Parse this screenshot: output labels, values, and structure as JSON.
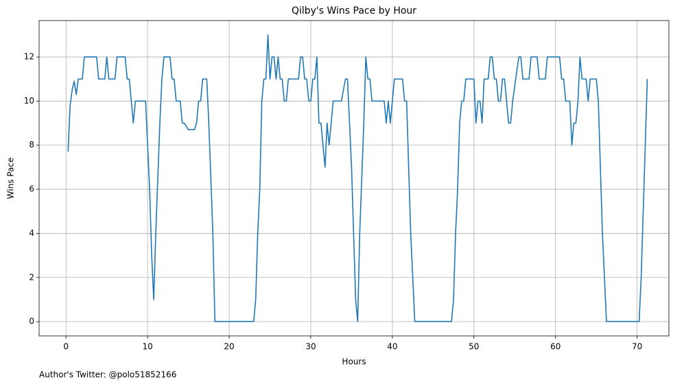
{
  "chart_data": {
    "type": "line",
    "title": "Qilby's Wins Pace by Hour",
    "xlabel": "Hours",
    "ylabel": "Wins Pace",
    "annotation": "Author's Twitter: @polo51852166",
    "color": "#1f77b4",
    "grid": true,
    "x": [
      0.25,
      0.5,
      0.75,
      1.0,
      1.25,
      1.5,
      2.0,
      2.25,
      3.75,
      4.0,
      4.75,
      5.0,
      5.25,
      6.0,
      6.25,
      7.25,
      7.5,
      7.75,
      8.25,
      8.5,
      9.75,
      10.25,
      10.5,
      10.75,
      11.0,
      11.5,
      11.75,
      12.0,
      12.75,
      13.0,
      13.25,
      13.5,
      14.0,
      14.25,
      14.5,
      15.0,
      15.75,
      16.0,
      16.25,
      16.5,
      16.75,
      17.25,
      17.5,
      18.0,
      18.25,
      23.0,
      23.25,
      23.5,
      23.75,
      24.0,
      24.25,
      24.5,
      24.75,
      25.0,
      25.25,
      25.5,
      25.75,
      26.0,
      26.25,
      26.5,
      26.75,
      27.0,
      27.25,
      28.5,
      28.75,
      29.0,
      29.25,
      29.5,
      29.75,
      30.0,
      30.25,
      30.5,
      30.75,
      31.0,
      31.25,
      31.5,
      31.75,
      32.0,
      32.25,
      32.5,
      32.75,
      33.75,
      34.25,
      34.5,
      35.0,
      35.25,
      35.5,
      35.75,
      36.0,
      36.5,
      36.75,
      37.0,
      37.25,
      37.5,
      39.0,
      39.25,
      39.5,
      39.75,
      40.0,
      40.25,
      41.25,
      41.5,
      41.75,
      42.25,
      42.75,
      47.25,
      47.5,
      47.75,
      48.0,
      48.25,
      48.5,
      48.75,
      49.0,
      50.0,
      50.25,
      50.5,
      50.75,
      51.0,
      51.25,
      51.75,
      52.0,
      52.25,
      52.5,
      52.75,
      53.0,
      53.25,
      53.5,
      53.75,
      54.0,
      54.25,
      54.5,
      54.75,
      55.5,
      55.75,
      56.0,
      56.75,
      57.0,
      57.75,
      58.0,
      58.75,
      59.0,
      60.5,
      60.75,
      61.0,
      61.25,
      61.75,
      62.0,
      62.25,
      62.5,
      62.75,
      63.0,
      63.25,
      63.75,
      64.0,
      64.25,
      65.0,
      65.25,
      65.5,
      65.75,
      66.25,
      70.25,
      70.5,
      71.25
    ],
    "values": [
      7.7,
      9.8,
      10.5,
      10.9,
      10.3,
      11,
      11,
      12,
      12,
      11,
      11,
      12,
      11,
      11,
      12,
      12,
      11,
      11,
      9,
      10,
      10,
      6,
      3,
      1,
      4,
      9,
      11,
      12,
      12,
      11,
      11,
      10,
      10,
      9,
      9,
      8.7,
      8.7,
      9,
      10,
      10,
      11,
      11,
      9,
      4,
      0,
      0,
      1,
      4,
      6,
      10,
      11,
      11,
      13,
      11,
      12,
      12,
      11,
      12,
      11,
      11,
      10,
      10,
      11,
      11,
      12,
      12,
      11,
      11,
      10,
      10,
      11,
      11,
      12,
      9,
      9,
      8,
      7,
      9,
      8,
      9,
      10,
      10,
      11,
      11,
      7,
      4,
      1,
      0,
      4,
      9,
      12,
      11,
      11,
      10,
      10,
      9,
      10,
      9,
      10,
      11,
      11,
      10,
      10,
      4,
      0,
      0,
      1,
      4,
      6,
      9,
      10,
      10,
      11,
      11,
      9,
      10,
      10,
      9,
      11,
      11,
      12,
      12,
      11,
      11,
      10,
      10,
      11,
      11,
      10,
      9,
      9,
      10,
      12,
      12,
      11,
      11,
      12,
      12,
      11,
      11,
      12,
      12,
      11,
      11,
      10,
      10,
      8,
      9,
      9,
      10,
      12,
      11,
      11,
      10,
      11,
      11,
      10,
      7,
      4,
      0,
      0,
      2,
      11
    ],
    "xlim": [
      -3.3,
      73.9
    ],
    "ylim": [
      -0.65,
      13.65
    ],
    "xticks": [
      0,
      10,
      20,
      30,
      40,
      50,
      60,
      70
    ],
    "yticks": [
      0,
      2,
      4,
      6,
      8,
      10,
      12
    ]
  }
}
